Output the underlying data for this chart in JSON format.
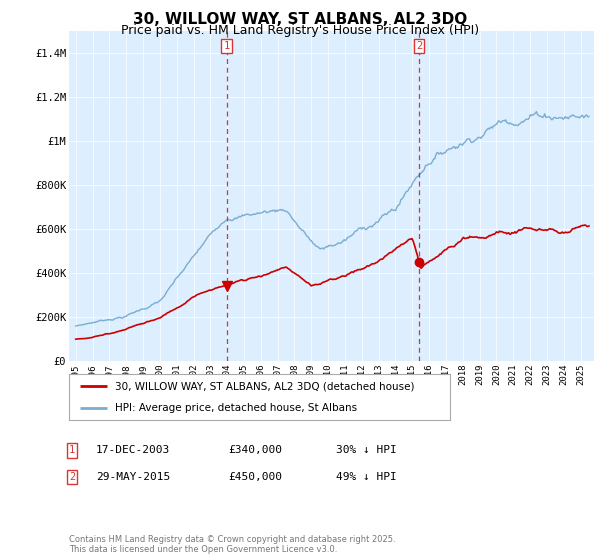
{
  "title": "30, WILLOW WAY, ST ALBANS, AL2 3DQ",
  "subtitle": "Price paid vs. HM Land Registry's House Price Index (HPI)",
  "title_fontsize": 11,
  "subtitle_fontsize": 9,
  "background_color": "#ffffff",
  "plot_bg_color": "#ddeeff",
  "ylim": [
    0,
    1500000
  ],
  "yticks": [
    0,
    200000,
    400000,
    600000,
    800000,
    1000000,
    1200000,
    1400000
  ],
  "ytick_labels": [
    "£0",
    "£200K",
    "£400K",
    "£600K",
    "£800K",
    "£1M",
    "£1.2M",
    "£1.4M"
  ],
  "red_line_color": "#cc0000",
  "blue_line_color": "#7aadcf",
  "vline_color": "#dd3333",
  "vline_x1": 2003.97,
  "vline_x2": 2015.41,
  "transaction1_year": 2003.97,
  "transaction1_price": 340000,
  "transaction2_year": 2015.41,
  "transaction2_price": 450000,
  "transaction1_date": "17-DEC-2003",
  "transaction1_price_str": "£340,000",
  "transaction1_note": "30% ↓ HPI",
  "transaction2_date": "29-MAY-2015",
  "transaction2_price_str": "£450,000",
  "transaction2_note": "49% ↓ HPI",
  "legend_line1": "30, WILLOW WAY, ST ALBANS, AL2 3DQ (detached house)",
  "legend_line2": "HPI: Average price, detached house, St Albans",
  "footer": "Contains HM Land Registry data © Crown copyright and database right 2025.\nThis data is licensed under the Open Government Licence v3.0."
}
